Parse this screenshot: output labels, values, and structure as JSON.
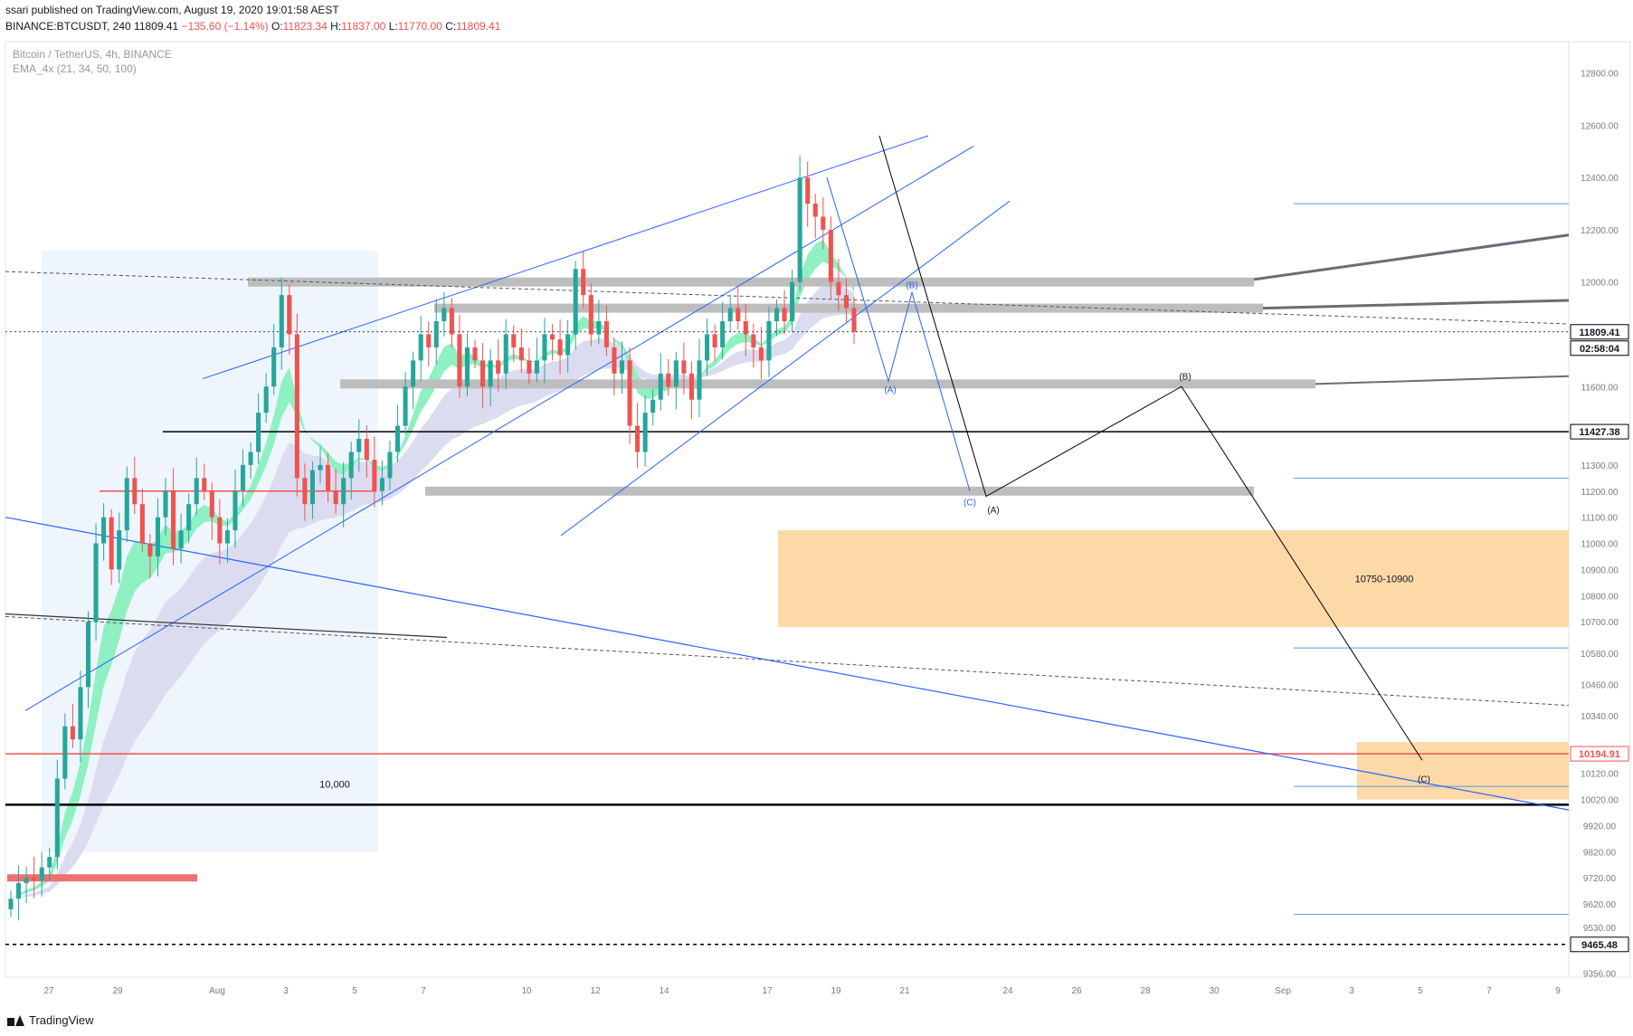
{
  "header": {
    "publisher": "ssari published on TradingView.com, August 19, 2020 19:01:58 AEST",
    "symbol": "BINANCE:BTCUSDT, 240",
    "last": "11809.41",
    "change": "−135.60 (−1.14%)",
    "o_label": "O:",
    "o": "11823.34",
    "h_label": "H:",
    "h": "11837.00",
    "l_label": "L:",
    "l": "11770.00",
    "c_label": "C:",
    "c": "11809.41"
  },
  "legend": {
    "title": "Bitcoin / TetherUS, 4h, BINANCE",
    "indicator": "EMA_4x (21, 34, 50, 100)"
  },
  "brand": {
    "name": "TradingView"
  },
  "colors": {
    "up": "#26a69a",
    "down": "#ef5350",
    "trend": "#2962ff",
    "ema_fast": "#8ff0c2",
    "ema_slow": "#dcdcf0",
    "zone": "#fdd9a8",
    "level_black": "#000000",
    "level_red": "#ef5350"
  },
  "chart_data": {
    "type": "candlestick",
    "price_axis_ticks": [
      "12800.00",
      "12600.00",
      "12400.00",
      "12200.00",
      "12000.00",
      "11809.41",
      "11600.00",
      "11427.38",
      "11300.00",
      "11200.00",
      "11100.00",
      "11000.00",
      "10900.00",
      "10800.00",
      "10700.00",
      "10580.00",
      "10460.00",
      "10340.00",
      "10194.91",
      "10120.00",
      "10020.00",
      "9920.00",
      "9820.00",
      "9720.00",
      "9620.00",
      "9530.00",
      "9465.48",
      "9356.00"
    ],
    "time_axis_ticks": [
      "27",
      "29",
      "Aug",
      "3",
      "5",
      "7",
      "10",
      "12",
      "14",
      "17",
      "19",
      "21",
      "24",
      "26",
      "28",
      "30",
      "Sep",
      "3",
      "5",
      "7",
      "9"
    ],
    "ylim": [
      9340,
      12920
    ],
    "current_price_label": "11809.41",
    "countdown_label": "02:58:04",
    "levels": [
      {
        "price": 11427.38,
        "label": "11427.38",
        "color": "#000000",
        "style": "solid"
      },
      {
        "price": 10194.91,
        "label": "10194.91",
        "color": "#ef5350",
        "style": "solid"
      },
      {
        "price": 9465.48,
        "label": "9465.48",
        "color": "#000000",
        "style": "dashed"
      },
      {
        "price": 10000,
        "label": "10,000",
        "color": "#000000",
        "style": "solid"
      }
    ],
    "zones": [
      {
        "low": 10750,
        "high": 10900,
        "label": "10750-10900"
      }
    ],
    "wave_labels_blue": [
      "(A)",
      "(B)",
      "(C)"
    ],
    "wave_labels_black": [
      "(A)",
      "(B)",
      "(C)"
    ],
    "closes": [
      9640,
      9700,
      9720,
      9710,
      9760,
      9800,
      10100,
      10300,
      10250,
      10450,
      10700,
      11000,
      11100,
      10900,
      11050,
      11250,
      11150,
      11000,
      10950,
      11100,
      11200,
      10980,
      11050,
      11150,
      11250,
      11200,
      11100,
      11000,
      11050,
      11200,
      11300,
      11350,
      11500,
      11600,
      11750,
      11950,
      11800,
      11250,
      11150,
      11280,
      11300,
      11200,
      11150,
      11250,
      11350,
      11400,
      11320,
      11200,
      11250,
      11350,
      11450,
      11600,
      11700,
      11800,
      11750,
      11850,
      11900,
      11800,
      11600,
      11750,
      11700,
      11600,
      11700,
      11650,
      11800,
      11750,
      11700,
      11650,
      11700,
      11800,
      11780,
      11720,
      11800,
      12050,
      11950,
      11800,
      11850,
      11750,
      11650,
      11700,
      11450,
      11350,
      11500,
      11550,
      11650,
      11600,
      11700,
      11650,
      11550,
      11700,
      11800,
      11750,
      11850,
      11900,
      11850,
      11800,
      11750,
      11700,
      11850,
      11900,
      11850,
      12000,
      12400,
      12300,
      12250,
      12200,
      12000,
      11950,
      11900,
      11809.41
    ]
  }
}
